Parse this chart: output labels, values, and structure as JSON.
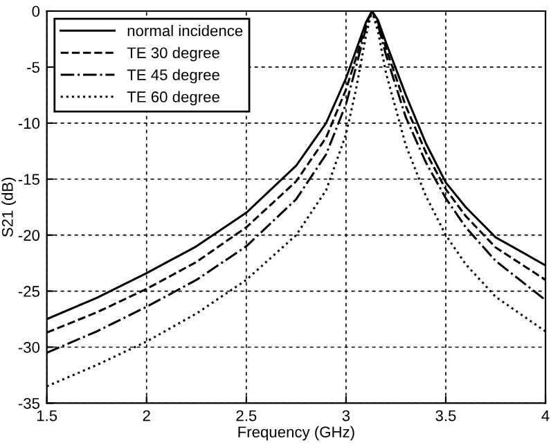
{
  "chart_data": {
    "type": "line",
    "xlabel": "Frequency (GHz)",
    "ylabel": "S21 (dB)",
    "x": [
      1.5,
      1.75,
      2,
      2.25,
      2.5,
      2.75,
      2.9,
      3.0,
      3.05,
      3.1,
      3.13,
      3.16,
      3.2,
      3.3,
      3.4,
      3.5,
      3.6,
      3.75,
      4
    ],
    "series": [
      {
        "name": "normal incidence",
        "color": "#000000",
        "line_style": "solid",
        "values": [
          -27.5,
          -25.6,
          -23.4,
          -21,
          -18,
          -13.8,
          -10,
          -6,
          -3.5,
          -1,
          0,
          -0.8,
          -2.8,
          -7.5,
          -11.8,
          -15.3,
          -17.5,
          -20.2,
          -22.7
        ]
      },
      {
        "name": "TE 30 degree",
        "color": "#000000",
        "line_style": "dashed",
        "values": [
          -28.7,
          -26.9,
          -24.8,
          -22.4,
          -19.3,
          -15.2,
          -11.3,
          -7,
          -4.2,
          -1.2,
          0,
          -1,
          -3.3,
          -8.5,
          -12.6,
          -15.9,
          -18.3,
          -21.1,
          -24
        ]
      },
      {
        "name": "TE 45 degree",
        "color": "#000000",
        "line_style": "dashdot",
        "values": [
          -30.5,
          -28.6,
          -26.4,
          -24,
          -21,
          -16.8,
          -12.8,
          -8.3,
          -5,
          -1.5,
          0,
          -1.2,
          -3.9,
          -9.5,
          -13.5,
          -16.7,
          -19.3,
          -22.3,
          -25.8
        ]
      },
      {
        "name": "TE 60 degree",
        "color": "#000000",
        "line_style": "dotted",
        "values": [
          -33.5,
          -31.6,
          -29.5,
          -27,
          -24,
          -20,
          -16,
          -11,
          -7,
          -2.2,
          0,
          -1.8,
          -5.5,
          -12,
          -16.5,
          -20,
          -22.6,
          -25.5,
          -28.6
        ]
      }
    ],
    "xlim": [
      1.5,
      4
    ],
    "xticks": [
      1.5,
      2,
      2.5,
      3,
      3.5,
      4
    ],
    "ylim": [
      -35,
      0
    ],
    "yticks": [
      -35,
      -30,
      -25,
      -20,
      -15,
      -10,
      -5,
      0
    ],
    "grid": true,
    "legend": "top left"
  }
}
